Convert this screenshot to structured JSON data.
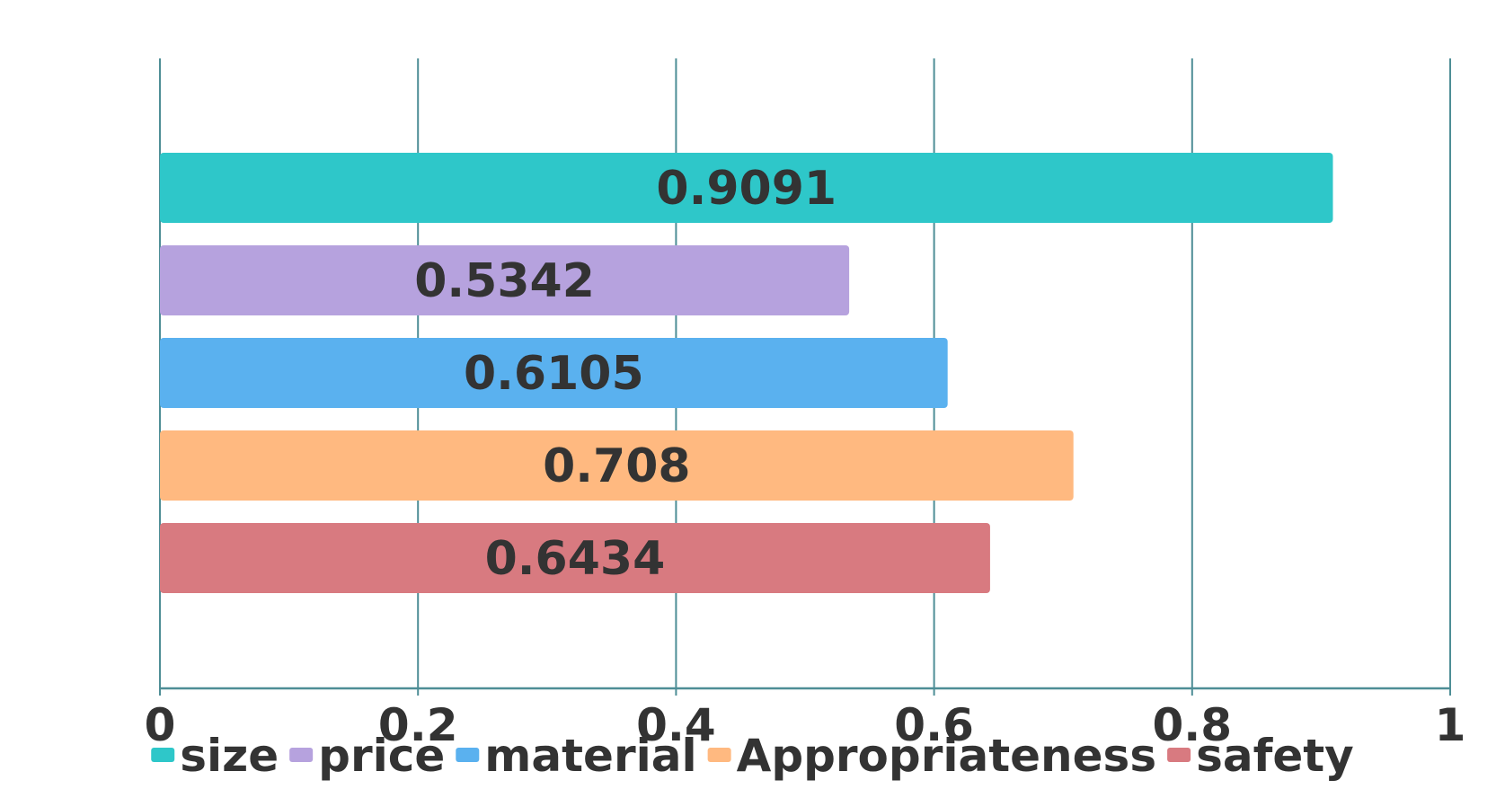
{
  "chart_data": {
    "type": "bar",
    "orientation": "horizontal",
    "xlim": [
      0,
      1
    ],
    "x_ticks": [
      "0",
      "0.2",
      "0.4",
      "0.6",
      "0.8",
      "1"
    ],
    "grid": "vertical",
    "legend_position": "bottom",
    "series": [
      {
        "name": "size",
        "value": 0.9091,
        "label": "0.9091",
        "color": "#2ec7c9"
      },
      {
        "name": "price",
        "value": 0.5342,
        "label": "0.5342",
        "color": "#b6a2de"
      },
      {
        "name": "material",
        "value": 0.6105,
        "label": "0.6105",
        "color": "#5ab1ef"
      },
      {
        "name": "Appropriateness",
        "value": 0.708,
        "label": "0.708",
        "color": "#ffb980"
      },
      {
        "name": "safety",
        "value": 0.6434,
        "label": "0.6434",
        "color": "#d87a80"
      }
    ],
    "axis_color": "#4e8e96"
  }
}
